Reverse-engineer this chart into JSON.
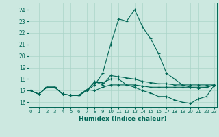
{
  "title": "",
  "xlabel": "Humidex (Indice chaleur)",
  "ylabel": "",
  "background_color": "#cce8e0",
  "grid_color": "#aad4c8",
  "line_color": "#006655",
  "x_ticks": [
    0,
    1,
    2,
    3,
    4,
    5,
    6,
    7,
    8,
    9,
    10,
    11,
    12,
    13,
    14,
    15,
    16,
    17,
    18,
    19,
    20,
    21,
    22,
    23
  ],
  "y_ticks": [
    16,
    17,
    18,
    19,
    20,
    21,
    22,
    23,
    24
  ],
  "xlim": [
    -0.3,
    23.3
  ],
  "ylim": [
    15.6,
    24.6
  ],
  "curves": [
    [
      17.0,
      16.7,
      17.3,
      17.3,
      16.7,
      16.6,
      16.6,
      17.0,
      17.7,
      17.7,
      18.0,
      18.0,
      17.5,
      17.3,
      17.0,
      16.8,
      16.5,
      16.5,
      16.2,
      16.0,
      15.9,
      16.3,
      16.5,
      17.5
    ],
    [
      17.0,
      16.7,
      17.3,
      17.3,
      16.7,
      16.6,
      16.6,
      17.0,
      17.5,
      18.5,
      21.0,
      23.2,
      23.0,
      24.0,
      22.5,
      21.5,
      20.2,
      18.5,
      18.0,
      17.5,
      17.3,
      17.2,
      17.3,
      17.5
    ],
    [
      17.0,
      16.7,
      17.3,
      17.3,
      16.7,
      16.6,
      16.6,
      17.0,
      17.8,
      17.5,
      18.3,
      18.2,
      18.1,
      18.0,
      17.8,
      17.7,
      17.6,
      17.6,
      17.5,
      17.5,
      17.5,
      17.5,
      17.5,
      17.5
    ],
    [
      17.0,
      16.7,
      17.3,
      17.3,
      16.7,
      16.6,
      16.6,
      17.1,
      17.0,
      17.3,
      17.5,
      17.5,
      17.5,
      17.5,
      17.4,
      17.3,
      17.3,
      17.3,
      17.3,
      17.3,
      17.3,
      17.3,
      17.3,
      17.5
    ]
  ]
}
